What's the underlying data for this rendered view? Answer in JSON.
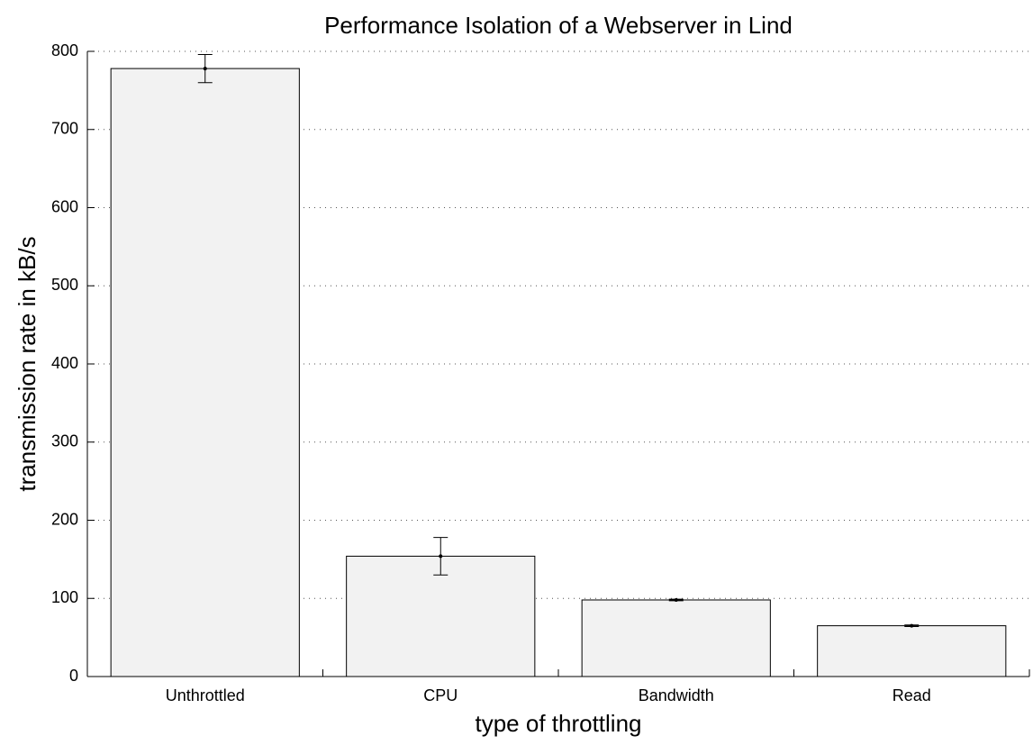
{
  "chart_data": {
    "type": "bar",
    "title": "Performance Isolation of a Webserver in Lind",
    "x_label": "type of throttling",
    "y_label": "transmission rate in kB/s",
    "categories": [
      "Unthrottled",
      "CPU",
      "Bandwidth",
      "Read"
    ],
    "values": [
      778,
      154,
      98,
      65
    ],
    "errors": [
      18,
      24,
      1,
      1
    ],
    "color": "#f2f2f2",
    "ylim": [
      0,
      800
    ],
    "yticks": [
      0,
      100,
      200,
      300,
      400,
      500,
      600,
      700,
      800
    ],
    "grid": true
  }
}
